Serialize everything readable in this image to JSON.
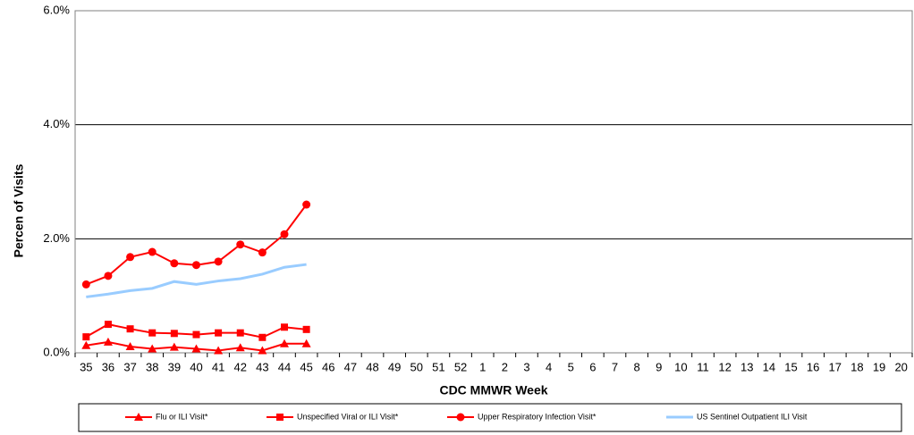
{
  "chart_data": {
    "type": "line",
    "x_label": "CDC MMWR Week",
    "y_label": "Percen of Visits",
    "categories": [
      "35",
      "36",
      "37",
      "38",
      "39",
      "40",
      "41",
      "42",
      "43",
      "44",
      "45",
      "46",
      "47",
      "48",
      "49",
      "50",
      "51",
      "52",
      "1",
      "2",
      "3",
      "4",
      "5",
      "6",
      "7",
      "8",
      "9",
      "10",
      "11",
      "12",
      "13",
      "14",
      "15",
      "16",
      "17",
      "18",
      "19",
      "20"
    ],
    "ylim": [
      0,
      6
    ],
    "yticks": [
      {
        "value": 0,
        "label": "0.0%"
      },
      {
        "value": 2,
        "label": "2.0%"
      },
      {
        "value": 4,
        "label": "4.0%"
      },
      {
        "value": 6,
        "label": "6.0%"
      }
    ],
    "grid": true,
    "legend": "bottom",
    "series": [
      {
        "name": "Flu or ILI Visit*",
        "color": "#ff0000",
        "marker": "triangle",
        "values": [
          0.13,
          0.19,
          0.11,
          0.07,
          0.1,
          0.07,
          0.04,
          0.09,
          0.04,
          0.16,
          0.16,
          null,
          null,
          null,
          null,
          null,
          null,
          null,
          null,
          null,
          null,
          null,
          null,
          null,
          null,
          null,
          null,
          null,
          null,
          null,
          null,
          null,
          null,
          null,
          null,
          null,
          null,
          null
        ]
      },
      {
        "name": "Unspecified Viral or ILI Visit*",
        "color": "#ff0000",
        "marker": "square",
        "values": [
          0.28,
          0.5,
          0.42,
          0.35,
          0.34,
          0.32,
          0.35,
          0.35,
          0.27,
          0.45,
          0.41,
          null,
          null,
          null,
          null,
          null,
          null,
          null,
          null,
          null,
          null,
          null,
          null,
          null,
          null,
          null,
          null,
          null,
          null,
          null,
          null,
          null,
          null,
          null,
          null,
          null,
          null,
          null
        ]
      },
      {
        "name": "Upper Respiratory Infection Visit*",
        "color": "#ff0000",
        "marker": "circle",
        "values": [
          1.2,
          1.35,
          1.68,
          1.77,
          1.57,
          1.54,
          1.6,
          1.9,
          1.76,
          2.08,
          2.6,
          null,
          null,
          null,
          null,
          null,
          null,
          null,
          null,
          null,
          null,
          null,
          null,
          null,
          null,
          null,
          null,
          null,
          null,
          null,
          null,
          null,
          null,
          null,
          null,
          null,
          null,
          null
        ]
      },
      {
        "name": "US Sentinel Outpatient ILI Visit",
        "color": "#99ccff",
        "marker": "none",
        "values": [
          0.98,
          1.03,
          1.09,
          1.13,
          1.25,
          1.2,
          1.26,
          1.3,
          1.38,
          1.5,
          1.55,
          null,
          null,
          null,
          null,
          null,
          null,
          null,
          null,
          null,
          null,
          null,
          null,
          null,
          null,
          null,
          null,
          null,
          null,
          null,
          null,
          null,
          null,
          null,
          null,
          null,
          null,
          null
        ]
      }
    ]
  }
}
